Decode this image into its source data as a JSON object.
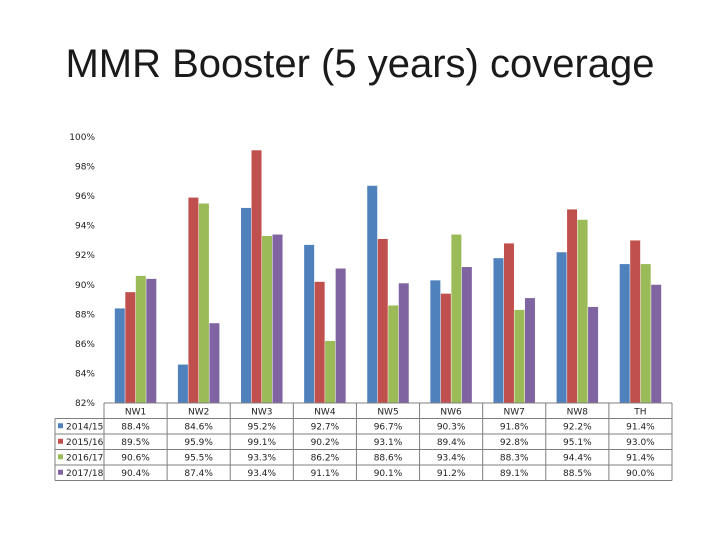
{
  "title": "MMR Booster (5 years) coverage",
  "chart_data": {
    "type": "bar",
    "categories": [
      "NW1",
      "NW2",
      "NW3",
      "NW4",
      "NW5",
      "NW6",
      "NW7",
      "NW8",
      "TH"
    ],
    "series": [
      {
        "name": "2014/15",
        "color": "#4f81bd",
        "values": [
          88.4,
          84.6,
          95.2,
          92.7,
          96.7,
          90.3,
          91.8,
          92.2,
          91.4
        ],
        "labels": [
          "88.4%",
          "84.6%",
          "95.2%",
          "92.7%",
          "96.7%",
          "90.3%",
          "91.8%",
          "92.2%",
          "91.4%"
        ]
      },
      {
        "name": "2015/16",
        "color": "#c0504d",
        "values": [
          89.5,
          95.9,
          99.1,
          90.2,
          93.1,
          89.4,
          92.8,
          95.1,
          93.0
        ],
        "labels": [
          "89.5%",
          "95.9%",
          "99.1%",
          "90.2%",
          "93.1%",
          "89.4%",
          "92.8%",
          "95.1%",
          "93.0%"
        ]
      },
      {
        "name": "2016/17",
        "color": "#9bbb59",
        "values": [
          90.6,
          95.5,
          93.3,
          86.2,
          88.6,
          93.4,
          88.3,
          94.4,
          91.4
        ],
        "labels": [
          "90.6%",
          "95.5%",
          "93.3%",
          "86.2%",
          "88.6%",
          "93.4%",
          "88.3%",
          "94.4%",
          "91.4%"
        ]
      },
      {
        "name": "2017/18",
        "color": "#8064a2",
        "values": [
          90.4,
          87.4,
          93.4,
          91.1,
          90.1,
          91.2,
          89.1,
          88.5,
          90.0
        ],
        "labels": [
          "90.4%",
          "87.4%",
          "93.4%",
          "91.1%",
          "90.1%",
          "91.2%",
          "89.1%",
          "88.5%",
          "90.0%"
        ]
      }
    ],
    "ylim": [
      82,
      100
    ],
    "yticks": [
      "82%",
      "84%",
      "86%",
      "88%",
      "90%",
      "92%",
      "94%",
      "96%",
      "98%",
      "100%"
    ],
    "grid": false,
    "legend": "data-table-below"
  }
}
